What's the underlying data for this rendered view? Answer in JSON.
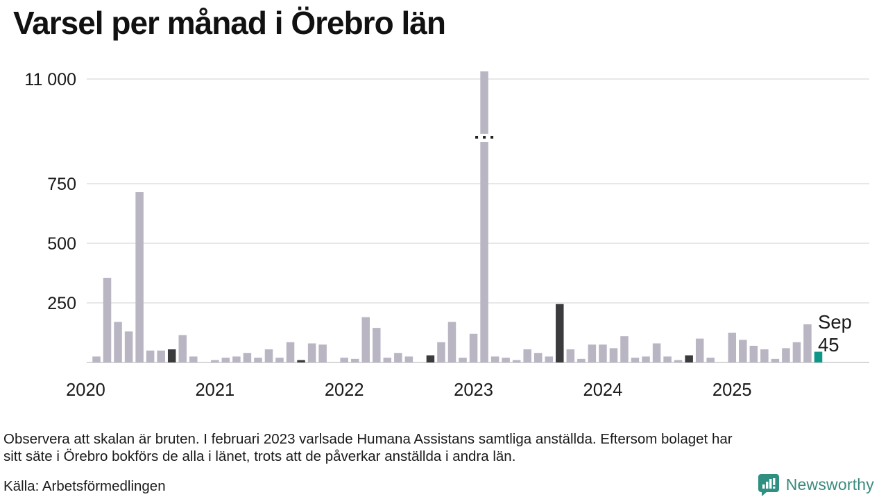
{
  "title": "Varsel per månad i Örebro län",
  "annotation": {
    "month_label": "Sep",
    "value_label": "45"
  },
  "footnote": {
    "line1": "Observera att skalan är bruten. I februari 2023 varlsade Humana Assistans samtliga anställda. Eftersom bolaget har",
    "line2": "sitt säte i Örebro bokförs de alla i länet, trots att de påverkar anställda i andra län."
  },
  "source": "Källa: Arbetsförmedlingen",
  "logo": {
    "text": "Newsworthy",
    "color": "#3a8a7d",
    "icon": "speech-bubble-bar-chart-icon",
    "icon_color": "#2f8f81"
  },
  "colors": {
    "bar_light": "#b9b5c3",
    "bar_dark": "#3b3b3e",
    "bar_teal": "#0e9688",
    "gridline": "#e7e7e9",
    "baseline": "#d6d6d8",
    "axis_text": "#1a1a1a",
    "break_dots": "#222222"
  },
  "chart_data": {
    "type": "bar",
    "title": "Varsel per månad i Örebro län",
    "xlabel": "",
    "ylabel": "",
    "y_ticks": [
      250,
      500,
      750
    ],
    "y_tick_labels": [
      "250",
      "500",
      "750"
    ],
    "y_break_label": "11 000",
    "y_axis_broken": true,
    "x_tick_labels": [
      "2020",
      "2021",
      "2022",
      "2023",
      "2024",
      "2025"
    ],
    "legend": "none",
    "grid": "horizontal",
    "color_meaning": {
      "light": "ordinary month",
      "dark": "September of earlier years",
      "teal": "latest month (Sep 2025)"
    },
    "months": [
      {
        "month": "2020-01",
        "value": 0,
        "color": "light"
      },
      {
        "month": "2020-02",
        "value": 25,
        "color": "light"
      },
      {
        "month": "2020-03",
        "value": 355,
        "color": "light"
      },
      {
        "month": "2020-04",
        "value": 170,
        "color": "light"
      },
      {
        "month": "2020-05",
        "value": 130,
        "color": "light"
      },
      {
        "month": "2020-06",
        "value": 715,
        "color": "light"
      },
      {
        "month": "2020-07",
        "value": 50,
        "color": "light"
      },
      {
        "month": "2020-08",
        "value": 50,
        "color": "light"
      },
      {
        "month": "2020-09",
        "value": 55,
        "color": "dark"
      },
      {
        "month": "2020-10",
        "value": 115,
        "color": "light"
      },
      {
        "month": "2020-11",
        "value": 25,
        "color": "light"
      },
      {
        "month": "2020-12",
        "value": 0,
        "color": "light"
      },
      {
        "month": "2021-01",
        "value": 10,
        "color": "light"
      },
      {
        "month": "2021-02",
        "value": 20,
        "color": "light"
      },
      {
        "month": "2021-03",
        "value": 25,
        "color": "light"
      },
      {
        "month": "2021-04",
        "value": 40,
        "color": "light"
      },
      {
        "month": "2021-05",
        "value": 20,
        "color": "light"
      },
      {
        "month": "2021-06",
        "value": 55,
        "color": "light"
      },
      {
        "month": "2021-07",
        "value": 20,
        "color": "light"
      },
      {
        "month": "2021-08",
        "value": 85,
        "color": "light"
      },
      {
        "month": "2021-09",
        "value": 10,
        "color": "dark"
      },
      {
        "month": "2021-10",
        "value": 80,
        "color": "light"
      },
      {
        "month": "2021-11",
        "value": 75,
        "color": "light"
      },
      {
        "month": "2021-12",
        "value": 0,
        "color": "light"
      },
      {
        "month": "2022-01",
        "value": 20,
        "color": "light"
      },
      {
        "month": "2022-02",
        "value": 15,
        "color": "light"
      },
      {
        "month": "2022-03",
        "value": 190,
        "color": "light"
      },
      {
        "month": "2022-04",
        "value": 145,
        "color": "light"
      },
      {
        "month": "2022-05",
        "value": 20,
        "color": "light"
      },
      {
        "month": "2022-06",
        "value": 40,
        "color": "light"
      },
      {
        "month": "2022-07",
        "value": 25,
        "color": "light"
      },
      {
        "month": "2022-08",
        "value": 0,
        "color": "light"
      },
      {
        "month": "2022-09",
        "value": 30,
        "color": "dark"
      },
      {
        "month": "2022-10",
        "value": 85,
        "color": "light"
      },
      {
        "month": "2022-11",
        "value": 170,
        "color": "light"
      },
      {
        "month": "2022-12",
        "value": 20,
        "color": "light"
      },
      {
        "month": "2023-01",
        "value": 120,
        "color": "light"
      },
      {
        "month": "2023-02",
        "value": 11000,
        "color": "light",
        "break": true
      },
      {
        "month": "2023-03",
        "value": 25,
        "color": "light"
      },
      {
        "month": "2023-04",
        "value": 20,
        "color": "light"
      },
      {
        "month": "2023-05",
        "value": 10,
        "color": "light"
      },
      {
        "month": "2023-06",
        "value": 55,
        "color": "light"
      },
      {
        "month": "2023-07",
        "value": 40,
        "color": "light"
      },
      {
        "month": "2023-08",
        "value": 25,
        "color": "light"
      },
      {
        "month": "2023-09",
        "value": 245,
        "color": "dark"
      },
      {
        "month": "2023-10",
        "value": 55,
        "color": "light"
      },
      {
        "month": "2023-11",
        "value": 15,
        "color": "light"
      },
      {
        "month": "2023-12",
        "value": 75,
        "color": "light"
      },
      {
        "month": "2024-01",
        "value": 75,
        "color": "light"
      },
      {
        "month": "2024-02",
        "value": 60,
        "color": "light"
      },
      {
        "month": "2024-03",
        "value": 110,
        "color": "light"
      },
      {
        "month": "2024-04",
        "value": 20,
        "color": "light"
      },
      {
        "month": "2024-05",
        "value": 25,
        "color": "light"
      },
      {
        "month": "2024-06",
        "value": 80,
        "color": "light"
      },
      {
        "month": "2024-07",
        "value": 25,
        "color": "light"
      },
      {
        "month": "2024-08",
        "value": 10,
        "color": "light"
      },
      {
        "month": "2024-09",
        "value": 30,
        "color": "dark"
      },
      {
        "month": "2024-10",
        "value": 100,
        "color": "light"
      },
      {
        "month": "2024-11",
        "value": 20,
        "color": "light"
      },
      {
        "month": "2024-12",
        "value": 0,
        "color": "light"
      },
      {
        "month": "2025-01",
        "value": 125,
        "color": "light"
      },
      {
        "month": "2025-02",
        "value": 95,
        "color": "light"
      },
      {
        "month": "2025-03",
        "value": 70,
        "color": "light"
      },
      {
        "month": "2025-04",
        "value": 55,
        "color": "light"
      },
      {
        "month": "2025-05",
        "value": 15,
        "color": "light"
      },
      {
        "month": "2025-06",
        "value": 60,
        "color": "light"
      },
      {
        "month": "2025-07",
        "value": 85,
        "color": "light"
      },
      {
        "month": "2025-08",
        "value": 160,
        "color": "light"
      },
      {
        "month": "2025-09",
        "value": 45,
        "color": "teal"
      }
    ]
  }
}
